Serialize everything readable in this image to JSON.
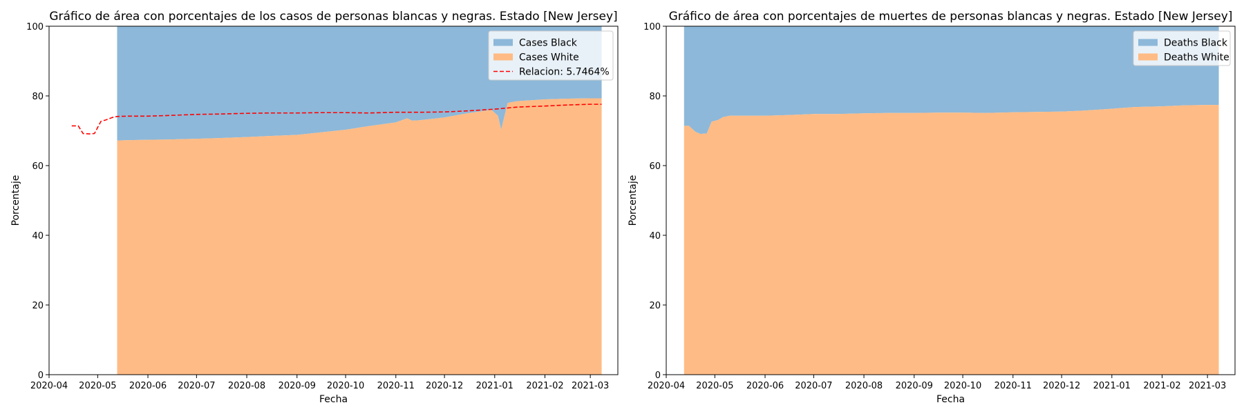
{
  "chart_data": [
    {
      "type": "area",
      "title": "Gráfico de área con porcentajes de los casos de personas blancas y negras. Estado [New Jersey]",
      "xlabel": "Fecha",
      "ylabel": "Porcentaje",
      "ylim": [
        0,
        100
      ],
      "xlim": [
        "2020-04-01",
        "2021-03-18"
      ],
      "yticks": [
        0,
        20,
        40,
        60,
        80,
        100
      ],
      "xticks": [
        "2020-04",
        "2020-05",
        "2020-06",
        "2020-07",
        "2020-08",
        "2020-09",
        "2020-10",
        "2020-11",
        "2020-12",
        "2021-01",
        "2021-02",
        "2021-03"
      ],
      "grid": false,
      "legend": "upper right",
      "stacked": true,
      "x": [
        "2020-05-13",
        "2020-05-20",
        "2020-06-01",
        "2020-06-15",
        "2020-07-01",
        "2020-07-15",
        "2020-08-01",
        "2020-08-15",
        "2020-09-01",
        "2020-09-15",
        "2020-10-01",
        "2020-10-15",
        "2020-11-01",
        "2020-11-08",
        "2020-11-11",
        "2020-11-15",
        "2020-12-01",
        "2020-12-15",
        "2020-12-30",
        "2021-01-03",
        "2021-01-05",
        "2021-01-09",
        "2021-01-15",
        "2021-02-01",
        "2021-02-15",
        "2021-03-01",
        "2021-03-08"
      ],
      "series": [
        {
          "name": "Cases White",
          "color": "#ffbb85",
          "values": [
            67.2,
            67.3,
            67.4,
            67.5,
            67.7,
            67.9,
            68.2,
            68.5,
            68.8,
            69.5,
            70.3,
            71.3,
            72.4,
            73.6,
            72.9,
            73.0,
            73.8,
            75.0,
            76.0,
            74.3,
            70.3,
            78.0,
            78.5,
            79.0,
            79.2,
            79.3,
            79.3
          ]
        },
        {
          "name": "Cases Black",
          "color": "#8db8d9",
          "values": [
            32.8,
            32.7,
            32.6,
            32.5,
            32.3,
            32.1,
            31.8,
            31.5,
            31.2,
            30.5,
            29.7,
            28.7,
            27.6,
            26.4,
            27.1,
            27.0,
            26.2,
            25.0,
            24.0,
            25.7,
            29.7,
            22.0,
            21.5,
            21.0,
            20.8,
            20.7,
            20.7
          ]
        }
      ],
      "line": {
        "name": "Relacion: 5.7464%",
        "color": "#ff0000",
        "style": "dashed",
        "x": [
          "2020-04-15",
          "2020-04-19",
          "2020-04-22",
          "2020-04-26",
          "2020-04-29",
          "2020-05-03",
          "2020-05-06",
          "2020-05-10",
          "2020-05-13",
          "2020-05-20",
          "2020-06-01",
          "2020-06-15",
          "2020-07-01",
          "2020-07-15",
          "2020-08-01",
          "2020-08-15",
          "2020-09-01",
          "2020-09-15",
          "2020-10-01",
          "2020-10-15",
          "2020-11-01",
          "2020-11-15",
          "2020-12-01",
          "2020-12-15",
          "2021-01-01",
          "2021-01-15",
          "2021-02-01",
          "2021-02-15",
          "2021-03-01",
          "2021-03-08"
        ],
        "values": [
          71.4,
          71.4,
          69.2,
          69.1,
          69.2,
          72.7,
          73.1,
          73.8,
          74.1,
          74.2,
          74.2,
          74.4,
          74.7,
          74.8,
          75.0,
          75.1,
          75.1,
          75.2,
          75.2,
          75.1,
          75.3,
          75.3,
          75.4,
          75.7,
          76.2,
          76.8,
          77.1,
          77.4,
          77.6,
          77.6
        ]
      }
    },
    {
      "type": "area",
      "title": "Gráfico de área con porcentajes de muertes de personas blancas y negras. Estado [New Jersey]",
      "xlabel": "Fecha",
      "ylabel": "Porcentaje",
      "ylim": [
        0,
        100
      ],
      "xlim": [
        "2020-04-01",
        "2021-03-18"
      ],
      "yticks": [
        0,
        20,
        40,
        60,
        80,
        100
      ],
      "xticks": [
        "2020-04",
        "2020-05",
        "2020-06",
        "2020-07",
        "2020-08",
        "2020-09",
        "2020-10",
        "2020-11",
        "2020-12",
        "2021-01",
        "2021-02",
        "2021-03"
      ],
      "grid": false,
      "legend": "upper right",
      "stacked": true,
      "x": [
        "2020-04-12",
        "2020-04-15",
        "2020-04-19",
        "2020-04-22",
        "2020-04-26",
        "2020-04-29",
        "2020-05-03",
        "2020-05-06",
        "2020-05-10",
        "2020-05-13",
        "2020-05-20",
        "2020-06-01",
        "2020-06-15",
        "2020-07-01",
        "2020-07-15",
        "2020-08-01",
        "2020-08-15",
        "2020-09-01",
        "2020-09-15",
        "2020-10-01",
        "2020-10-15",
        "2020-11-01",
        "2020-11-15",
        "2020-12-01",
        "2020-12-15",
        "2021-01-01",
        "2021-01-15",
        "2021-02-01",
        "2021-02-15",
        "2021-03-01",
        "2021-03-08"
      ],
      "series": [
        {
          "name": "Deaths White",
          "color": "#ffbb85",
          "values": [
            71.4,
            71.4,
            69.7,
            69.1,
            69.2,
            72.6,
            73.1,
            73.9,
            74.3,
            74.3,
            74.3,
            74.3,
            74.5,
            74.8,
            74.8,
            75.0,
            75.1,
            75.1,
            75.2,
            75.2,
            75.1,
            75.3,
            75.4,
            75.5,
            75.8,
            76.3,
            76.8,
            77.0,
            77.3,
            77.4,
            77.4
          ]
        },
        {
          "name": "Deaths Black",
          "color": "#8db8d9",
          "values": [
            28.6,
            28.6,
            30.3,
            30.9,
            30.8,
            27.4,
            26.9,
            26.1,
            25.7,
            25.7,
            25.7,
            25.7,
            25.5,
            25.2,
            25.2,
            25.0,
            24.9,
            24.9,
            24.8,
            24.8,
            24.9,
            24.7,
            24.6,
            24.5,
            24.2,
            23.7,
            23.2,
            23.0,
            22.7,
            22.6,
            22.6
          ]
        }
      ]
    }
  ]
}
